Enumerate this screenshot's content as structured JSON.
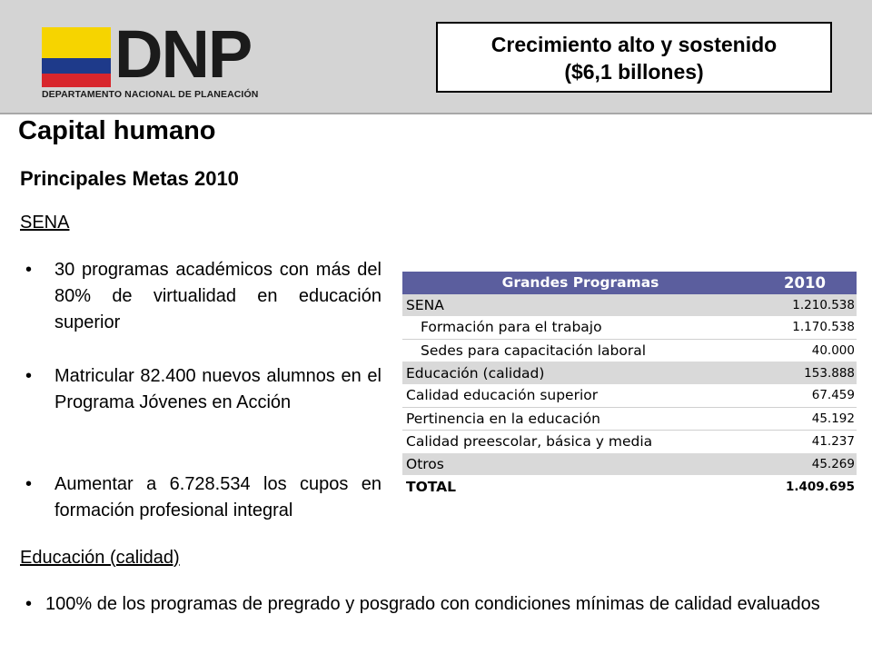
{
  "header": {
    "logo_text": "DNP",
    "logo_subtext": "DEPARTAMENTO NACIONAL DE PLANEACIÓN",
    "title_line1": "Crecimiento alto y sostenido",
    "title_line2": "($6,1 billones)"
  },
  "main": {
    "section_title": "Capital humano",
    "subtitle": "Principales Metas 2010",
    "sena_heading": "SENA",
    "sena_bullets": [
      "30 programas académicos con más del 80% de virtualidad en educación superior",
      "Matricular 82.400 nuevos alumnos en el Programa Jóvenes en Acción",
      "Aumentar a 6.728.534 los cupos en formación profesional integral"
    ],
    "education_heading": "Educación (calidad)",
    "education_bullets": [
      "100% de los programas de pregrado y posgrado con condiciones mínimas de calidad evaluados"
    ]
  },
  "table": {
    "headers": [
      "Grandes Programas",
      "2010"
    ],
    "rows": [
      {
        "label": "SENA",
        "value": "1.210.538"
      },
      {
        "label": "Formación para el trabajo",
        "value": "1.170.538"
      },
      {
        "label": "Sedes para capacitación laboral",
        "value": "40.000"
      },
      {
        "label": "Educación (calidad)",
        "value": "153.888"
      },
      {
        "label": "Calidad educación superior",
        "value": "67.459"
      },
      {
        "label": "Pertinencia en la educación",
        "value": "45.192"
      },
      {
        "label": "Calidad preescolar, básica y media",
        "value": "41.237"
      },
      {
        "label": "Otros",
        "value": "45.269"
      },
      {
        "label": "TOTAL",
        "value": "1.409.695"
      }
    ]
  },
  "colors": {
    "header_band": "#d4d4d4",
    "table_header": "#5b5e9e",
    "row_shade": "#d9d9d9",
    "flag_yellow": "#f6d400",
    "flag_blue": "#1e3a8a",
    "flag_red": "#d8262c"
  }
}
